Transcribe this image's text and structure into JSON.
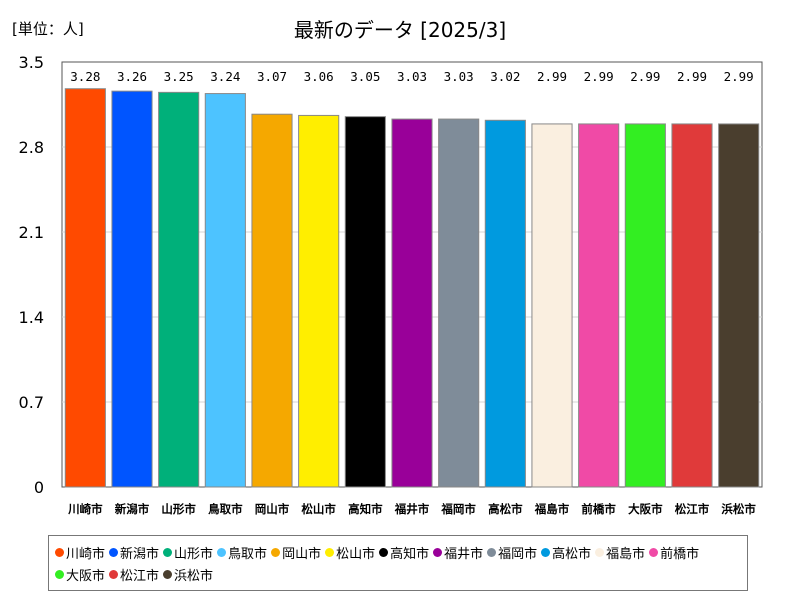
{
  "unit_label": "[単位：人]",
  "title": "最新のデータ [2025/3]",
  "chart_data": {
    "type": "bar",
    "categories": [
      "川崎市",
      "新潟市",
      "山形市",
      "鳥取市",
      "岡山市",
      "松山市",
      "高知市",
      "福井市",
      "福岡市",
      "高松市",
      "福島市",
      "前橋市",
      "大阪市",
      "松江市",
      "浜松市"
    ],
    "values": [
      3.28,
      3.26,
      3.25,
      3.24,
      3.07,
      3.06,
      3.05,
      3.03,
      3.03,
      3.02,
      2.99,
      2.99,
      2.99,
      2.99,
      2.99
    ],
    "value_labels": [
      "3.28",
      "3.26",
      "3.25",
      "3.24",
      "3.07",
      "3.06",
      "3.05",
      "3.03",
      "3.03",
      "3.02",
      "2.99",
      "2.99",
      "2.99",
      "2.99",
      "2.99"
    ],
    "colors": [
      "#ff4a00",
      "#0055ff",
      "#00b07a",
      "#4dc3ff",
      "#f5a800",
      "#ffee00",
      "#000000",
      "#990099",
      "#7f8c99",
      "#009adf",
      "#faefe0",
      "#f04aa6",
      "#33ee22",
      "#e03a3a",
      "#4a3e2e"
    ],
    "ylim": [
      0,
      3.5
    ],
    "yticks": [
      "0",
      "0.7",
      "1.4",
      "2.1",
      "2.8",
      "3.5"
    ],
    "ytick_values": [
      0,
      0.7,
      1.4,
      2.1,
      2.8,
      3.5
    ],
    "grid": true,
    "legend_position": "bottom"
  }
}
